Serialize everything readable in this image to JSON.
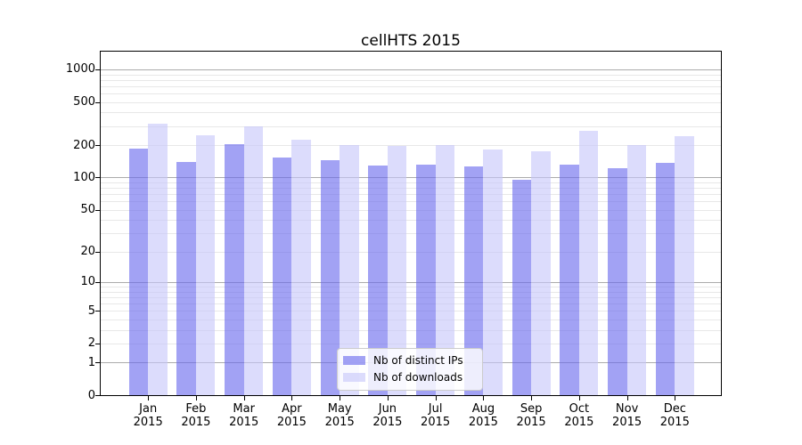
{
  "chart_data": {
    "type": "bar",
    "title": "cellHTS 2015",
    "categories": [
      "Jan 2015",
      "Feb 2015",
      "Mar 2015",
      "Apr 2015",
      "May 2015",
      "Jun 2015",
      "Jul 2015",
      "Aug 2015",
      "Sep 2015",
      "Oct 2015",
      "Nov 2015",
      "Dec 2015"
    ],
    "series": [
      {
        "name": "Nb of distinct IPs",
        "color": "rgba(105,105,238,0.62)",
        "values": [
          187,
          139,
          205,
          154,
          145,
          129,
          132,
          128,
          95,
          132,
          122,
          137
        ]
      },
      {
        "name": "Nb of downloads",
        "color": "rgba(198,198,250,0.62)",
        "values": [
          317,
          246,
          299,
          225,
          201,
          195,
          199,
          181,
          175,
          272,
          199,
          240
        ]
      }
    ],
    "yscale": "log10(1+x)",
    "yticks": [
      0,
      1,
      2,
      5,
      10,
      20,
      50,
      100,
      200,
      500,
      1000
    ],
    "ylim": [
      0,
      1430
    ],
    "xlabel": "",
    "ylabel": "",
    "grid": true,
    "legend_position": "bottom-center",
    "colors": {
      "grid_major": "#ababab",
      "grid_minor": "#e8e8e8",
      "axis": "#000000",
      "background": "#ffffff"
    }
  }
}
